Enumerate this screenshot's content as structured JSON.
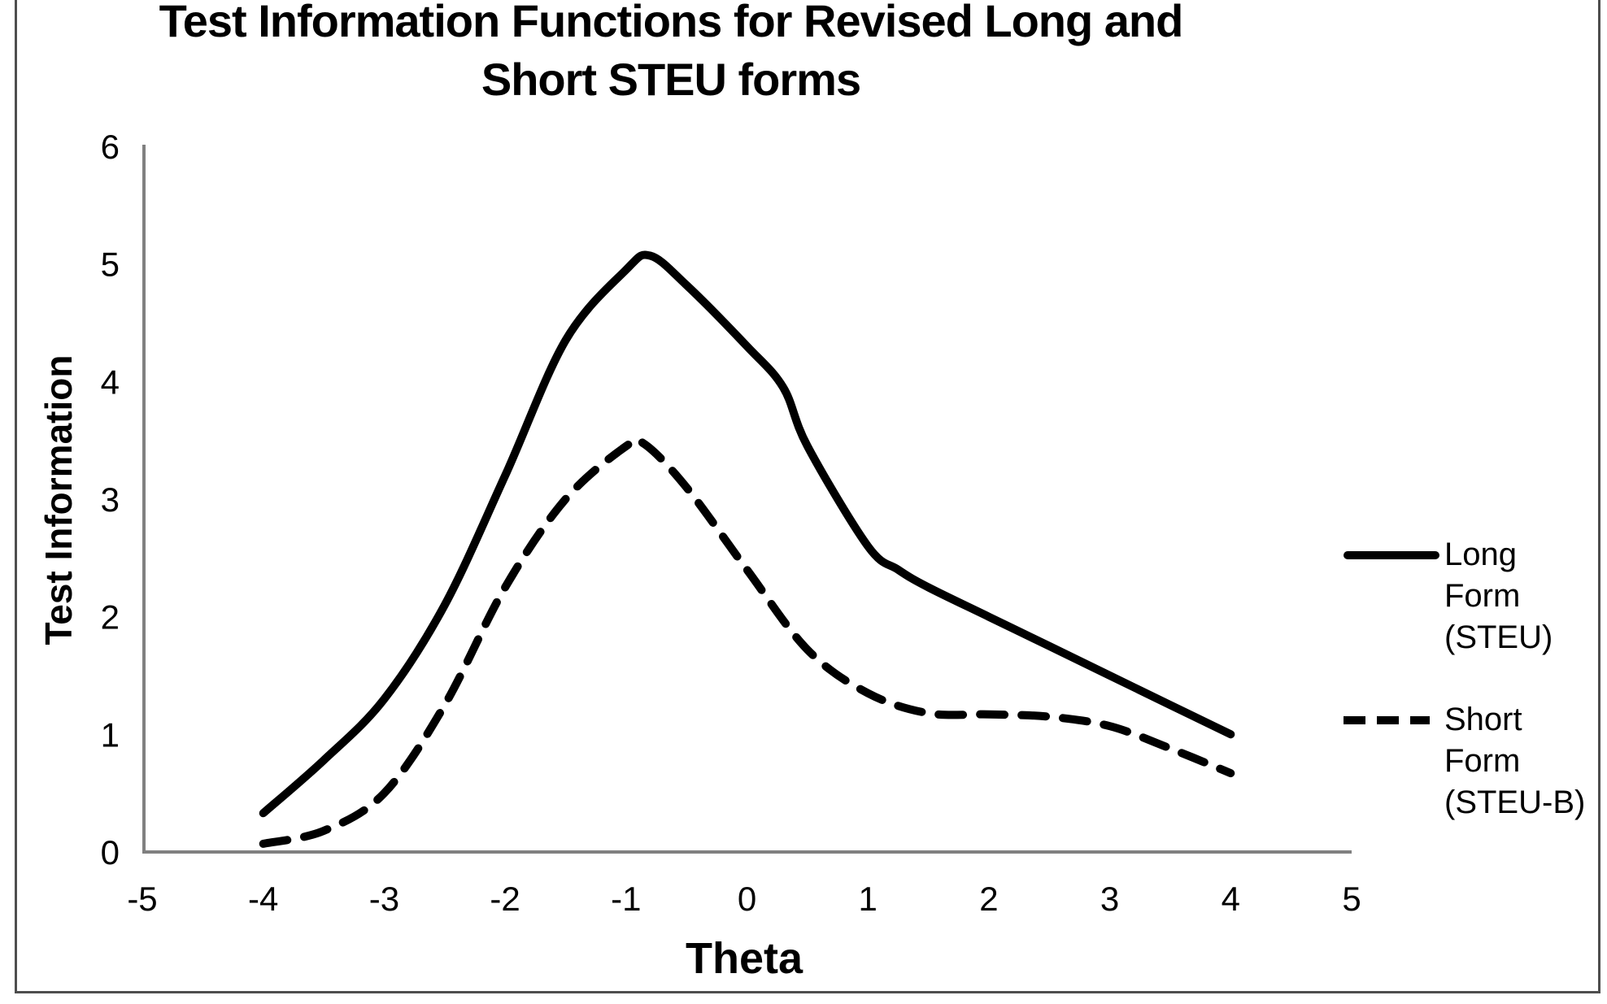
{
  "title": {
    "line1": "Test Information Functions for Revised Long and",
    "line2": "Short STEU forms"
  },
  "chart_data": {
    "type": "line",
    "title": "Test Information Functions for Revised Long and Short STEU forms",
    "xlabel": "Theta",
    "ylabel": "Test Information",
    "xlim": [
      -5,
      5
    ],
    "ylim": [
      0,
      6
    ],
    "x_ticks": [
      -5,
      -4,
      -3,
      -2,
      -1,
      0,
      1,
      2,
      3,
      4,
      5
    ],
    "y_ticks": [
      0,
      1,
      2,
      3,
      4,
      5,
      6
    ],
    "grid": false,
    "legend_position": "right",
    "series": [
      {
        "name": "Long Form (STEU)",
        "line_style": "solid",
        "color": "#000000",
        "points": [
          [
            -4,
            0.33
          ],
          [
            -3.5,
            0.78
          ],
          [
            -3,
            1.3
          ],
          [
            -2.5,
            2.1
          ],
          [
            -2,
            3.2
          ],
          [
            -1.5,
            4.35
          ],
          [
            -1,
            4.95
          ],
          [
            -0.8,
            5.07
          ],
          [
            -0.5,
            4.82
          ],
          [
            0,
            4.3
          ],
          [
            0.3,
            3.95
          ],
          [
            0.5,
            3.45
          ],
          [
            1,
            2.6
          ],
          [
            1.25,
            2.4
          ],
          [
            1.5,
            2.25
          ],
          [
            2,
            2.0
          ],
          [
            2.5,
            1.75
          ],
          [
            3,
            1.5
          ],
          [
            3.5,
            1.25
          ],
          [
            4,
            1.0
          ]
        ]
      },
      {
        "name": "Short Form (STEU-B)",
        "line_style": "dashed",
        "color": "#000000",
        "points": [
          [
            -4,
            0.07
          ],
          [
            -3.5,
            0.18
          ],
          [
            -3,
            0.5
          ],
          [
            -2.5,
            1.25
          ],
          [
            -2,
            2.25
          ],
          [
            -1.5,
            3.0
          ],
          [
            -1,
            3.45
          ],
          [
            -0.85,
            3.47
          ],
          [
            -0.5,
            3.1
          ],
          [
            0,
            2.4
          ],
          [
            0.5,
            1.72
          ],
          [
            1,
            1.35
          ],
          [
            1.5,
            1.18
          ],
          [
            2,
            1.17
          ],
          [
            2.5,
            1.15
          ],
          [
            3,
            1.07
          ],
          [
            3.5,
            0.88
          ],
          [
            4,
            0.67
          ]
        ]
      }
    ]
  },
  "legend": {
    "items": [
      {
        "name": "Long Form (STEU)",
        "lines": [
          "Long",
          "Form",
          "(STEU)"
        ],
        "line_style": "solid"
      },
      {
        "name": "Short Form (STEU-B)",
        "lines": [
          "Short",
          "Form",
          "(STEU-B)"
        ],
        "line_style": "dashed"
      }
    ]
  },
  "colors": {
    "axis": "#808080",
    "curve": "#000000",
    "text": "#000000",
    "border": "#4e4e4e",
    "background": "#ffffff"
  }
}
